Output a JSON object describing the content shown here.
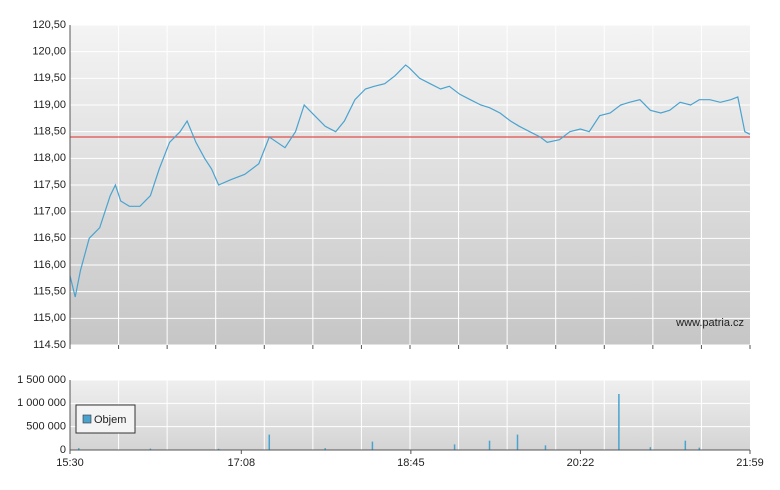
{
  "chart_data": [
    {
      "type": "line",
      "xlim": [
        "15:30",
        "21:59"
      ],
      "ylim": [
        114.5,
        120.5
      ],
      "yticks": [
        {
          "value": 114.5,
          "label": "114.50"
        },
        {
          "value": 115,
          "label": "115,00"
        },
        {
          "value": 115.5,
          "label": "115,50"
        },
        {
          "value": 116,
          "label": "116,00"
        },
        {
          "value": 116.5,
          "label": "116,50"
        },
        {
          "value": 117,
          "label": "117,00"
        },
        {
          "value": 117.5,
          "label": "117,50"
        },
        {
          "value": 118,
          "label": "118,00"
        },
        {
          "value": 118.5,
          "label": "118,50"
        },
        {
          "value": 119,
          "label": "119,00"
        },
        {
          "value": 119.5,
          "label": "119,50"
        },
        {
          "value": 120,
          "label": "120,00"
        },
        {
          "value": 120.5,
          "label": "120,50"
        }
      ],
      "reference_line": {
        "value": 118.4,
        "color": "#e0504a"
      },
      "watermark": "www.patria.cz",
      "grid": true,
      "x": [
        "15:30",
        "15:33",
        "15:36",
        "15:41",
        "15:47",
        "15:53",
        "15:56",
        "15:59",
        "16:04",
        "16:10",
        "16:16",
        "16:21",
        "16:27",
        "16:33",
        "16:37",
        "16:42",
        "16:47",
        "16:51",
        "16:55",
        "17:02",
        "17:10",
        "17:18",
        "17:24",
        "17:33",
        "17:39",
        "17:44",
        "17:50",
        "17:56",
        "18:02",
        "18:07",
        "18:13",
        "18:19",
        "18:24",
        "18:30",
        "18:36",
        "18:42",
        "18:44",
        "18:50",
        "18:56",
        "19:02",
        "19:07",
        "19:13",
        "19:19",
        "19:25",
        "19:30",
        "19:36",
        "19:42",
        "19:47",
        "19:53",
        "19:59",
        "20:03",
        "20:10",
        "20:16",
        "20:22",
        "20:27",
        "20:33",
        "20:39",
        "20:45",
        "20:50",
        "20:56",
        "21:02",
        "21:08",
        "21:13",
        "21:19",
        "21:25",
        "21:30",
        "21:36",
        "21:42",
        "21:48",
        "21:52",
        "21:56",
        "21:59"
      ],
      "series": [
        {
          "color": "#4aa3cf",
          "values": [
            115.8,
            115.4,
            115.9,
            116.5,
            116.7,
            117.3,
            117.5,
            117.2,
            117.1,
            117.1,
            117.3,
            117.8,
            118.3,
            118.5,
            118.7,
            118.3,
            118.0,
            117.8,
            117.5,
            117.6,
            117.7,
            117.9,
            118.4,
            118.2,
            118.5,
            119.0,
            118.8,
            118.6,
            118.5,
            118.7,
            119.1,
            119.3,
            119.35,
            119.4,
            119.55,
            119.75,
            119.7,
            119.5,
            119.4,
            119.3,
            119.35,
            119.2,
            119.1,
            119.0,
            118.95,
            118.85,
            118.7,
            118.6,
            118.5,
            118.4,
            118.3,
            118.35,
            118.5,
            118.55,
            118.5,
            118.8,
            118.85,
            119.0,
            119.05,
            119.1,
            118.9,
            118.85,
            118.9,
            119.05,
            119.0,
            119.1,
            119.1,
            119.05,
            119.1,
            119.15,
            118.5,
            118.45
          ]
        }
      ]
    },
    {
      "type": "bar",
      "xlim": [
        "15:30",
        "21:59"
      ],
      "ylim": [
        0,
        1500000
      ],
      "yticks": [
        0,
        {
          "value": 500000,
          "label": "500 000"
        },
        {
          "value": 1000000,
          "label": "1 000 000"
        },
        {
          "value": 1500000,
          "label": "1 500 000"
        }
      ],
      "xticks": [
        "15:30",
        "17:08",
        "18:45",
        "20:22",
        "21:59"
      ],
      "grid": true,
      "legend": "top-left",
      "x": [
        "15:35",
        "16:16",
        "16:55",
        "17:24",
        "17:56",
        "18:23",
        "19:10",
        "19:30",
        "19:46",
        "20:02",
        "20:44",
        "21:02",
        "21:22",
        "21:30"
      ],
      "series": [
        {
          "name": "Objem",
          "color": "#4aa3cf",
          "values": [
            40000,
            30000,
            25000,
            330000,
            40000,
            180000,
            120000,
            200000,
            330000,
            100000,
            1200000,
            60000,
            200000,
            50000
          ]
        }
      ]
    }
  ]
}
